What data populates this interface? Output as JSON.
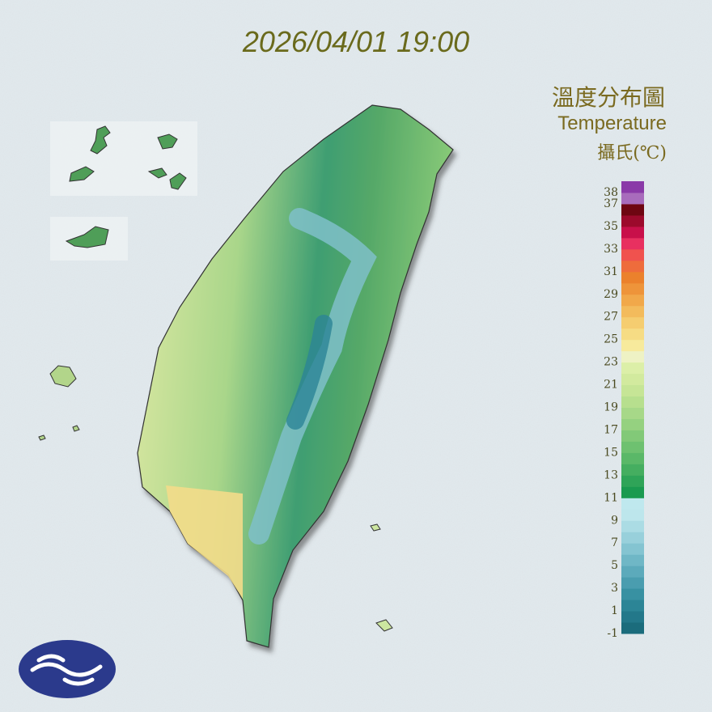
{
  "header": {
    "datetime": "2026/04/01 19:00"
  },
  "legend": {
    "title": "溫度分布圖",
    "subtitle": "Temperature",
    "unit": "攝氏(℃)",
    "range": [
      -1,
      39
    ],
    "ticks": [
      38,
      37,
      35,
      33,
      31,
      29,
      27,
      25,
      23,
      21,
      19,
      17,
      15,
      13,
      11,
      9,
      7,
      5,
      3,
      1,
      -1
    ],
    "colors": [
      "#1b6c7c",
      "#23788a",
      "#2c8596",
      "#3891a2",
      "#4a9daf",
      "#5caabb",
      "#6fb7c6",
      "#84c4d1",
      "#98d0db",
      "#abdce4",
      "#bde6ec",
      "#bfe8ee",
      "#1a9a50",
      "#2fa458",
      "#45ae60",
      "#5ab868",
      "#6ec170",
      "#82c978",
      "#95d180",
      "#a7d888",
      "#b7df8e",
      "#c6e596",
      "#d2ea9e",
      "#dcefa8",
      "#eef2c4",
      "#f7ea9c",
      "#f6dc84",
      "#f5cd70",
      "#f3bb5c",
      "#f1a84a",
      "#ee943a",
      "#eb812c",
      "#ee6c3c",
      "#f0524e",
      "#e83060",
      "#c8104a",
      "#9c0a2c",
      "#6e0612",
      "#a86cbc",
      "#8a3aa8"
    ]
  }
}
